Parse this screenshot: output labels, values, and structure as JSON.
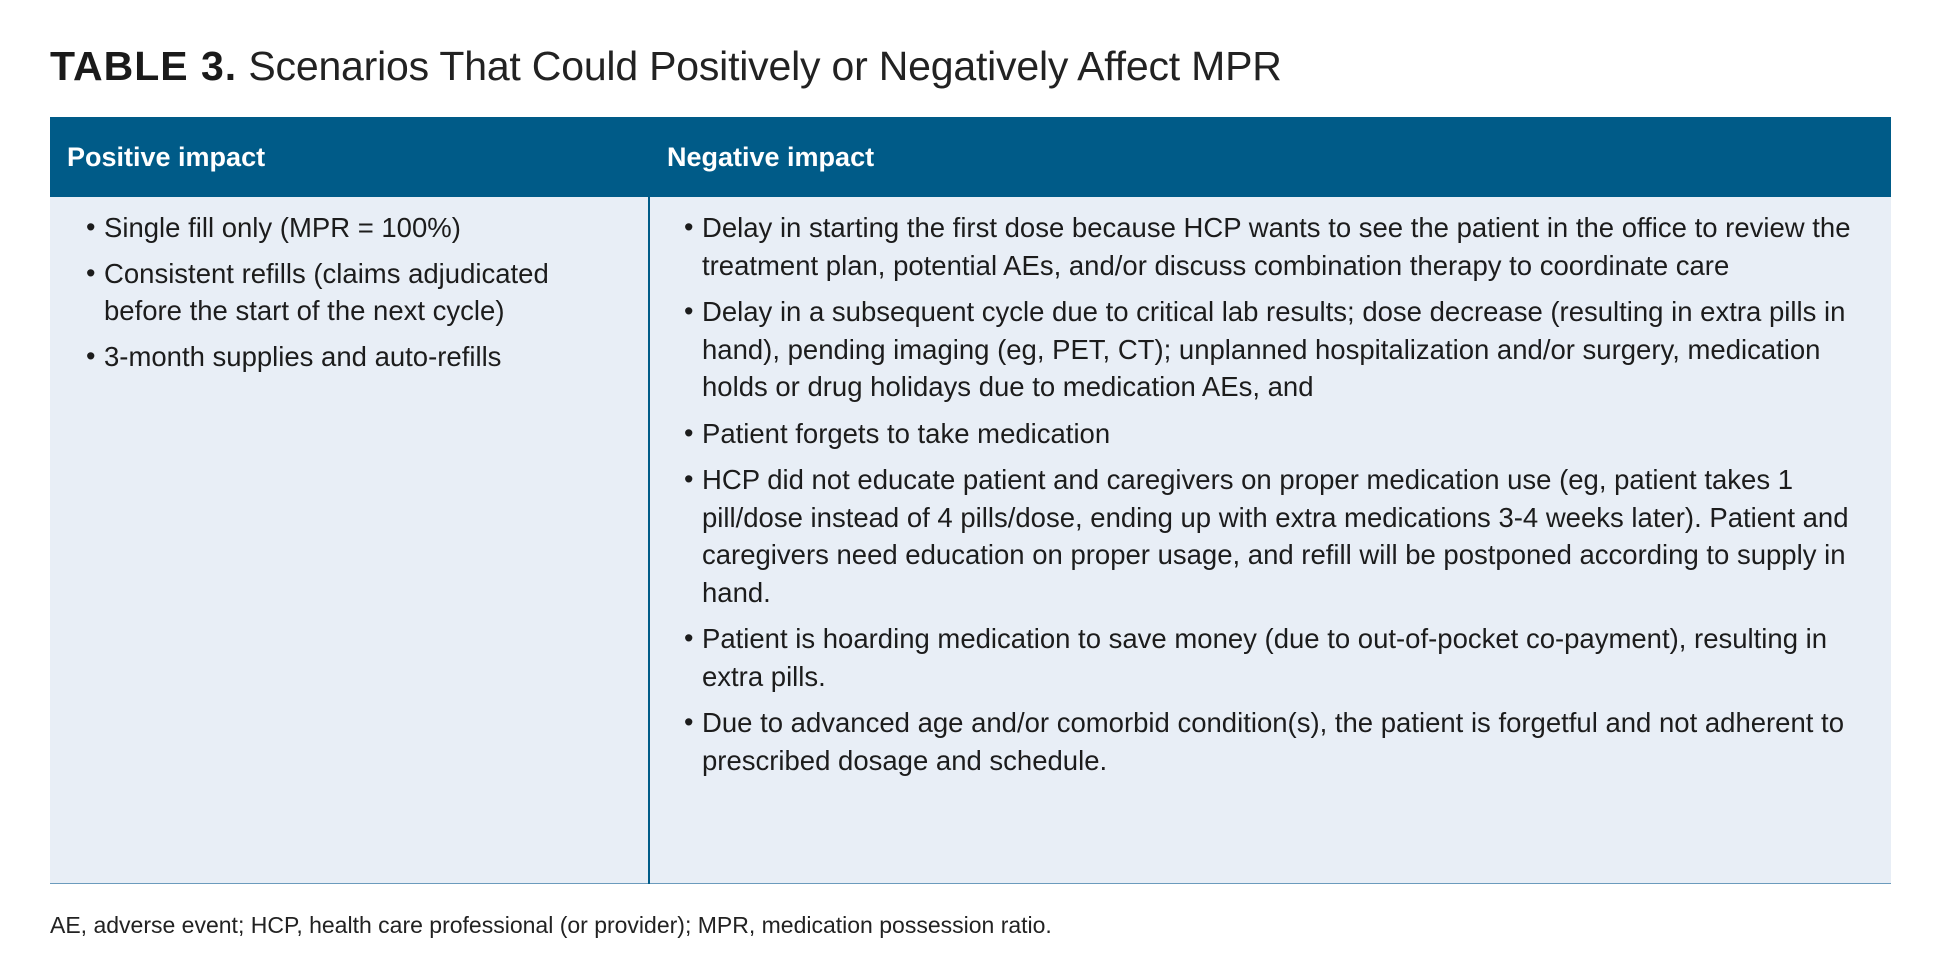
{
  "title": {
    "label": "TABLE 3.",
    "text": "Scenarios That Could Positively or Negatively Affect MPR"
  },
  "table": {
    "headers": [
      "Positive impact",
      "Negative impact"
    ],
    "positive_items": [
      "Single fill only (MPR = 100%)",
      "Consistent refills (claims adjudicated before the start of the next cycle)",
      "3-month supplies and auto-refills"
    ],
    "negative_items": [
      "Delay in starting the first dose because HCP wants to see the patient in the office to review the treatment plan, potential AEs, and/or discuss combination therapy to coordinate care",
      "Delay in a subsequent cycle due to critical lab results; dose decrease (resulting in extra pills in hand), pending imaging (eg, PET, CT); unplanned hospitalization and/or surgery, medication holds or drug holidays due to medication AEs, and",
      "Patient forgets to take medication",
      "HCP did not educate patient and caregivers on proper medication use (eg, patient takes 1 pill/dose instead of 4 pills/dose, ending up with extra medications 3-4 weeks later). Patient and caregivers need education on proper usage, and refill will be postponed according to supply in hand.",
      "Patient is hoarding medication to save money (due to out-of-pocket co-payment), resulting in extra pills.",
      "Due to advanced age and/or comorbid condition(s), the patient is forgetful and not adherent to prescribed dosage and schedule."
    ]
  },
  "footnote": "AE, adverse event; HCP, health care professional (or provider); MPR, medication possession ratio.",
  "colors": {
    "header_bg": "#005b88",
    "body_bg": "#e8eef6",
    "rule": "#6b9bbd"
  }
}
